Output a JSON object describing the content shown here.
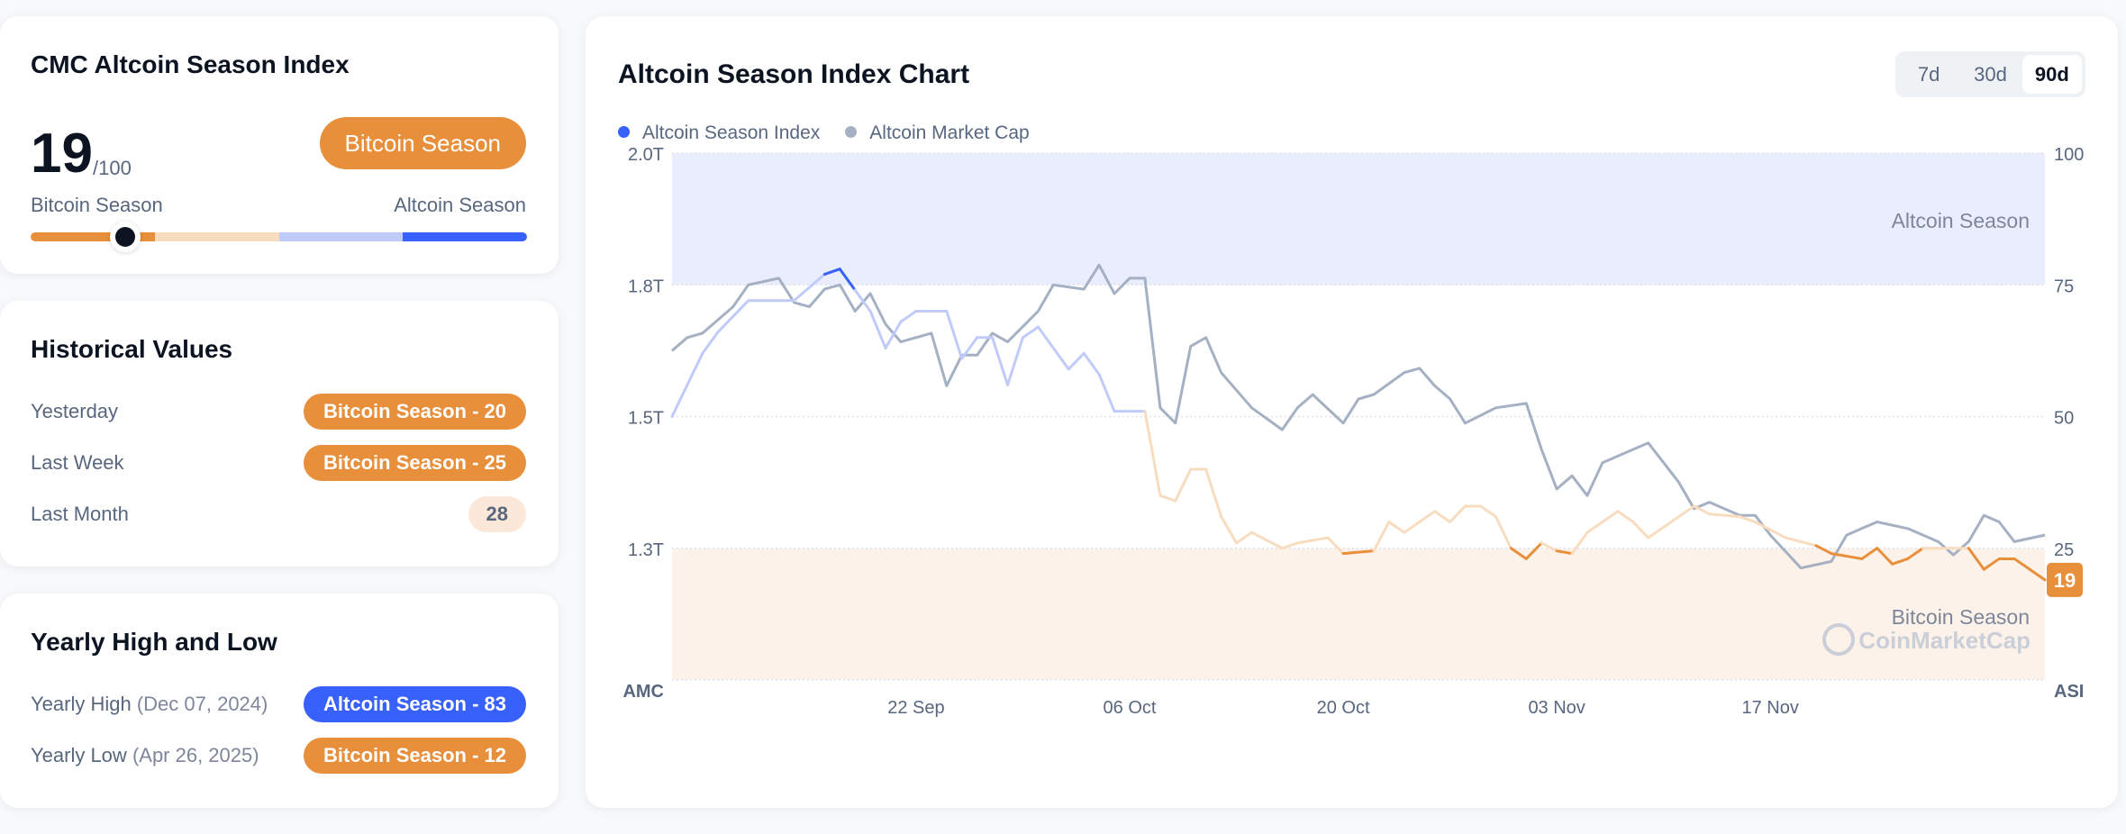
{
  "index_card": {
    "title": "CMC Altcoin Season Index",
    "value": "19",
    "max": "/100",
    "status": "Bitcoin Season",
    "scale_left": "Bitcoin Season",
    "scale_right": "Altcoin Season",
    "level_percent": 19
  },
  "historical": {
    "title": "Historical Values",
    "rows": [
      {
        "label": "Yesterday",
        "value": "Bitcoin Season - 20"
      },
      {
        "label": "Last Week",
        "value": "Bitcoin Season - 25"
      },
      {
        "label": "Last Month",
        "value": "28"
      }
    ]
  },
  "yearly": {
    "title": "Yearly High and Low",
    "rows": [
      {
        "label": "Yearly High",
        "date": "(Dec 07, 2024)",
        "value": "Altcoin Season - 83"
      },
      {
        "label": "Yearly Low",
        "date": "(Apr 26, 2025)",
        "value": "Bitcoin Season - 12"
      }
    ]
  },
  "chart_card": {
    "title": "Altcoin Season Index Chart",
    "periods": [
      "7d",
      "30d",
      "90d"
    ],
    "active_period": "90d"
  },
  "colors": {
    "bitcoin": "#e88f3b",
    "bitcoin_light": "#f8dcbf",
    "altcoin": "#3861fb",
    "altcoin_light": "#c1cbf9",
    "market_cap": "#a6b0c3"
  },
  "chart_data": {
    "type": "line",
    "title": "Altcoin Season Index Chart",
    "x_range": [
      "2025-09-06",
      "2025-12-05"
    ],
    "x_ticks": [
      {
        "date": "2025-09-22",
        "label": "22 Sep"
      },
      {
        "date": "2025-10-06",
        "label": "06 Oct"
      },
      {
        "date": "2025-10-20",
        "label": "20 Oct"
      },
      {
        "date": "2025-11-03",
        "label": "03 Nov"
      },
      {
        "date": "2025-11-17",
        "label": "17 Nov"
      }
    ],
    "left_axis": {
      "label": "AMC",
      "ticks": [
        {
          "value": 2.0,
          "label": "2.0T"
        },
        {
          "value": 1.8,
          "label": "1.8T"
        },
        {
          "value": 1.5,
          "label": "1.5T"
        },
        {
          "value": 1.3,
          "label": "1.3T"
        }
      ]
    },
    "right_axis": {
      "label": "ASI",
      "range": [
        0,
        100
      ],
      "ticks": [
        {
          "value": 100,
          "label": "100"
        },
        {
          "value": 75,
          "label": "75"
        },
        {
          "value": 50,
          "label": "50"
        },
        {
          "value": 25,
          "label": "25"
        }
      ]
    },
    "zones": [
      {
        "label": "Altcoin Season",
        "from": 75,
        "to": 100
      },
      {
        "label": "Bitcoin Season",
        "from": 0,
        "to": 25
      }
    ],
    "current_label": "19",
    "watermark": "CoinMarketCap",
    "grid": true,
    "legend_position": "top-left",
    "series": [
      {
        "name": "Altcoin Season Index",
        "axis": "right",
        "points": [
          [
            "2025-09-06",
            50
          ],
          [
            "2025-09-08",
            62
          ],
          [
            "2025-09-09",
            66
          ],
          [
            "2025-09-11",
            72
          ],
          [
            "2025-09-14",
            72
          ],
          [
            "2025-09-16",
            77
          ],
          [
            "2025-09-17",
            78
          ],
          [
            "2025-09-18",
            74
          ],
          [
            "2025-09-19",
            70
          ],
          [
            "2025-09-20",
            63
          ],
          [
            "2025-09-21",
            68
          ],
          [
            "2025-09-22",
            70
          ],
          [
            "2025-09-24",
            70
          ],
          [
            "2025-09-25",
            61
          ],
          [
            "2025-09-26",
            65
          ],
          [
            "2025-09-27",
            65
          ],
          [
            "2025-09-28",
            56
          ],
          [
            "2025-09-29",
            65
          ],
          [
            "2025-09-30",
            67
          ],
          [
            "2025-10-02",
            59
          ],
          [
            "2025-10-03",
            62
          ],
          [
            "2025-10-04",
            58
          ],
          [
            "2025-10-05",
            51
          ],
          [
            "2025-10-07",
            51
          ],
          [
            "2025-10-08",
            35
          ],
          [
            "2025-10-09",
            34
          ],
          [
            "2025-10-10",
            40
          ],
          [
            "2025-10-11",
            40
          ],
          [
            "2025-10-12",
            31
          ],
          [
            "2025-10-13",
            26
          ],
          [
            "2025-10-14",
            28
          ],
          [
            "2025-10-16",
            25
          ],
          [
            "2025-10-17",
            26
          ],
          [
            "2025-10-19",
            27
          ],
          [
            "2025-10-20",
            24
          ],
          [
            "2025-10-22",
            24.5
          ],
          [
            "2025-10-23",
            30
          ],
          [
            "2025-10-24",
            28
          ],
          [
            "2025-10-25",
            30
          ],
          [
            "2025-10-26",
            32
          ],
          [
            "2025-10-27",
            30
          ],
          [
            "2025-10-28",
            33
          ],
          [
            "2025-10-29",
            33
          ],
          [
            "2025-10-30",
            31
          ],
          [
            "2025-10-31",
            25
          ],
          [
            "2025-11-01",
            23
          ],
          [
            "2025-11-02",
            26
          ],
          [
            "2025-11-03",
            24.5
          ],
          [
            "2025-11-04",
            24
          ],
          [
            "2025-11-05",
            28
          ],
          [
            "2025-11-06",
            30
          ],
          [
            "2025-11-07",
            32
          ],
          [
            "2025-11-08",
            30
          ],
          [
            "2025-11-09",
            27
          ],
          [
            "2025-11-10",
            29
          ],
          [
            "2025-11-12",
            33
          ],
          [
            "2025-11-13",
            31.5
          ],
          [
            "2025-11-15",
            31
          ],
          [
            "2025-11-16",
            30
          ],
          [
            "2025-11-18",
            27
          ],
          [
            "2025-11-20",
            25.5
          ],
          [
            "2025-11-21",
            24
          ],
          [
            "2025-11-23",
            23
          ],
          [
            "2025-11-24",
            25
          ],
          [
            "2025-11-25",
            22
          ],
          [
            "2025-11-26",
            23
          ],
          [
            "2025-11-27",
            25
          ],
          [
            "2025-11-30",
            25
          ],
          [
            "2025-12-01",
            21
          ],
          [
            "2025-12-02",
            23
          ],
          [
            "2025-12-03",
            23
          ],
          [
            "2025-12-04",
            21
          ],
          [
            "2025-12-05",
            19
          ]
        ]
      },
      {
        "name": "Altcoin Market Cap",
        "axis": "left",
        "unit": "T",
        "points": [
          [
            "2025-09-06",
            1.65
          ],
          [
            "2025-09-07",
            1.68
          ],
          [
            "2025-09-08",
            1.69
          ],
          [
            "2025-09-10",
            1.75
          ],
          [
            "2025-09-11",
            1.8
          ],
          [
            "2025-09-13",
            1.81
          ],
          [
            "2025-09-14",
            1.76
          ],
          [
            "2025-09-15",
            1.75
          ],
          [
            "2025-09-16",
            1.79
          ],
          [
            "2025-09-17",
            1.8
          ],
          [
            "2025-09-18",
            1.74
          ],
          [
            "2025-09-19",
            1.78
          ],
          [
            "2025-09-20",
            1.71
          ],
          [
            "2025-09-21",
            1.67
          ],
          [
            "2025-09-23",
            1.69
          ],
          [
            "2025-09-24",
            1.57
          ],
          [
            "2025-09-25",
            1.64
          ],
          [
            "2025-09-26",
            1.64
          ],
          [
            "2025-09-27",
            1.69
          ],
          [
            "2025-09-28",
            1.67
          ],
          [
            "2025-09-30",
            1.74
          ],
          [
            "2025-10-01",
            1.8
          ],
          [
            "2025-10-03",
            1.79
          ],
          [
            "2025-10-04",
            1.83
          ],
          [
            "2025-10-05",
            1.78
          ],
          [
            "2025-10-06",
            1.81
          ],
          [
            "2025-10-07",
            1.81
          ],
          [
            "2025-10-08",
            1.52
          ],
          [
            "2025-10-09",
            1.49
          ],
          [
            "2025-10-10",
            1.66
          ],
          [
            "2025-10-11",
            1.68
          ],
          [
            "2025-10-12",
            1.6
          ],
          [
            "2025-10-14",
            1.52
          ],
          [
            "2025-10-16",
            1.48
          ],
          [
            "2025-10-17",
            1.52
          ],
          [
            "2025-10-18",
            1.55
          ],
          [
            "2025-10-20",
            1.49
          ],
          [
            "2025-10-21",
            1.54
          ],
          [
            "2025-10-22",
            1.55
          ],
          [
            "2025-10-24",
            1.6
          ],
          [
            "2025-10-25",
            1.61
          ],
          [
            "2025-10-26",
            1.57
          ],
          [
            "2025-10-27",
            1.54
          ],
          [
            "2025-10-28",
            1.49
          ],
          [
            "2025-10-30",
            1.52
          ],
          [
            "2025-11-01",
            1.53
          ],
          [
            "2025-11-02",
            1.45
          ],
          [
            "2025-11-03",
            1.39
          ],
          [
            "2025-11-04",
            1.41
          ],
          [
            "2025-11-05",
            1.38
          ],
          [
            "2025-11-06",
            1.43
          ],
          [
            "2025-11-07",
            1.44
          ],
          [
            "2025-11-09",
            1.46
          ],
          [
            "2025-11-10",
            1.43
          ],
          [
            "2025-11-11",
            1.4
          ],
          [
            "2025-11-12",
            1.36
          ],
          [
            "2025-11-13",
            1.37
          ],
          [
            "2025-11-15",
            1.35
          ],
          [
            "2025-11-16",
            1.35
          ],
          [
            "2025-11-17",
            1.32
          ],
          [
            "2025-11-19",
            1.27
          ],
          [
            "2025-11-21",
            1.28
          ],
          [
            "2025-11-22",
            1.32
          ],
          [
            "2025-11-23",
            1.33
          ],
          [
            "2025-11-24",
            1.34
          ],
          [
            "2025-11-26",
            1.33
          ],
          [
            "2025-11-28",
            1.31
          ],
          [
            "2025-11-29",
            1.29
          ],
          [
            "2025-11-30",
            1.31
          ],
          [
            "2025-12-01",
            1.35
          ],
          [
            "2025-12-02",
            1.34
          ],
          [
            "2025-12-03",
            1.31
          ],
          [
            "2025-12-05",
            1.32
          ]
        ]
      }
    ]
  }
}
